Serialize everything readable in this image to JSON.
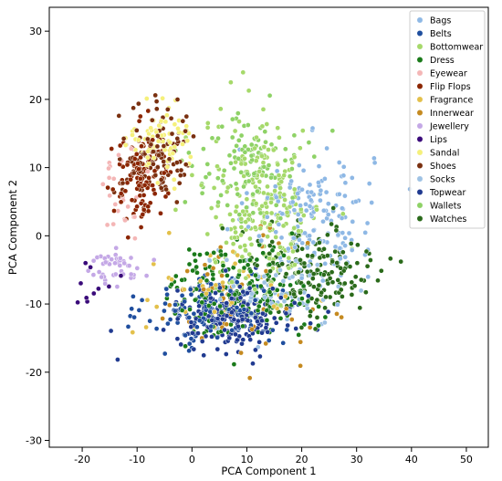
{
  "chart_data": {
    "type": "scatter",
    "title": "",
    "xlabel": "PCA Component 1",
    "ylabel": "PCA Component 2",
    "xlim": [
      -26,
      54
    ],
    "ylim": [
      -31,
      33.5
    ],
    "xticks": [
      -20,
      -10,
      0,
      10,
      20,
      30,
      40,
      50
    ],
    "yticks": [
      -30,
      -20,
      -10,
      0,
      10,
      20,
      30
    ],
    "grid": false,
    "legend": "top-right",
    "series": [
      {
        "name": "Bags",
        "color": "#8eb8e5",
        "cx": 22,
        "cy": 3,
        "sx": 10,
        "sy": 9,
        "n": 170
      },
      {
        "name": "Belts",
        "color": "#1f4e9e",
        "cx": 4,
        "cy": -11,
        "sx": 11,
        "sy": 5,
        "n": 150
      },
      {
        "name": "Bottomwear",
        "color": "#a6d96a",
        "cx": 13,
        "cy": 4,
        "sx": 10,
        "sy": 12,
        "n": 240
      },
      {
        "name": "Dress",
        "color": "#1a7a1a",
        "cx": 9,
        "cy": -8,
        "sx": 12,
        "sy": 6,
        "n": 200
      },
      {
        "name": "Eyewear",
        "color": "#f4b6b6",
        "cx": -13,
        "cy": 6,
        "sx": 4,
        "sy": 6,
        "n": 25
      },
      {
        "name": "Flip Flops",
        "color": "#8b2500",
        "cx": -9,
        "cy": 9,
        "sx": 5,
        "sy": 6,
        "n": 130
      },
      {
        "name": "Fragrance",
        "color": "#e3c04a",
        "cx": 5,
        "cy": -9,
        "sx": 13,
        "sy": 7,
        "n": 45
      },
      {
        "name": "Innerwear",
        "color": "#c58a20",
        "cx": 8,
        "cy": -9,
        "sx": 12,
        "sy": 8,
        "n": 55
      },
      {
        "name": "Jewellery",
        "color": "#c4a8e6",
        "cx": -14,
        "cy": -5,
        "sx": 5,
        "sy": 3,
        "n": 45
      },
      {
        "name": "Lips",
        "color": "#3a0a7a",
        "cx": -16,
        "cy": -6,
        "sx": 4,
        "sy": 3,
        "n": 10
      },
      {
        "name": "Sandal",
        "color": "#f5f07a",
        "cx": -6,
        "cy": 14,
        "sx": 5,
        "sy": 5,
        "n": 80
      },
      {
        "name": "Shoes",
        "color": "#7a3010",
        "cx": -6,
        "cy": 12,
        "sx": 6,
        "sy": 6,
        "n": 110
      },
      {
        "name": "Socks",
        "color": "#9ec2e4",
        "cx": 15,
        "cy": -8,
        "sx": 11,
        "sy": 5,
        "n": 70
      },
      {
        "name": "Topwear",
        "color": "#203a90",
        "cx": 8,
        "cy": -12,
        "sx": 10,
        "sy": 4,
        "n": 190
      },
      {
        "name": "Wallets",
        "color": "#8ed266",
        "cx": 10,
        "cy": 10,
        "sx": 9,
        "sy": 7,
        "n": 110
      },
      {
        "name": "Watches",
        "color": "#2a6a1a",
        "cx": 22,
        "cy": -5,
        "sx": 11,
        "sy": 7,
        "n": 170
      }
    ]
  }
}
